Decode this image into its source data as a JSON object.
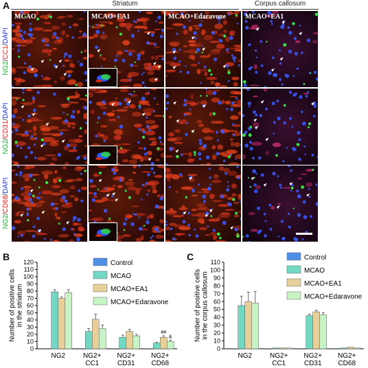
{
  "panel_a": {
    "letter": "A",
    "groups": [
      {
        "title": "Striatum"
      },
      {
        "title": "Corpus callosum"
      }
    ],
    "columns": [
      "MCAO",
      "MCAO+EA1",
      "MCAO+Edaravone",
      "MCAO+EA1"
    ],
    "rows": [
      {
        "parts": [
          {
            "text": "NG2",
            "color": "#22aa33"
          },
          {
            "text": "/",
            "color": "#222222"
          },
          {
            "text": "CC1",
            "color": "#dd2222"
          },
          {
            "text": "/",
            "color": "#222222"
          },
          {
            "text": "DAPI",
            "color": "#2233cc"
          }
        ]
      },
      {
        "parts": [
          {
            "text": "NG2",
            "color": "#22aa33"
          },
          {
            "text": "/",
            "color": "#222222"
          },
          {
            "text": "CD31",
            "color": "#dd2222"
          },
          {
            "text": "/",
            "color": "#222222"
          },
          {
            "text": "DAPI",
            "color": "#2233cc"
          }
        ]
      },
      {
        "parts": [
          {
            "text": "NG2",
            "color": "#22aa33"
          },
          {
            "text": "/",
            "color": "#222222"
          },
          {
            "text": "CD68",
            "color": "#dd2222"
          },
          {
            "text": "/",
            "color": "#222222"
          },
          {
            "text": "DAPI",
            "color": "#2233cc"
          }
        ]
      }
    ]
  },
  "chart_data": [
    {
      "panel": "B",
      "type": "bar",
      "ylabel": "Number of positive cells in the striatum",
      "ylim": [
        0,
        120
      ],
      "yticks": [
        0,
        10,
        20,
        30,
        40,
        50,
        60,
        70,
        80,
        90,
        100,
        110,
        120
      ],
      "categories": [
        "NG2",
        "NG2+\nCC1",
        "NG2+\nCD31",
        "NG2+\nCD68"
      ],
      "series": [
        {
          "name": "Control",
          "color": "#4f8fe6",
          "values": [
            0,
            0,
            0,
            0
          ],
          "errors": [
            0,
            0,
            0,
            0
          ]
        },
        {
          "name": "MCAO",
          "color": "#72d7c3",
          "values": [
            79,
            24,
            16,
            8
          ],
          "errors": [
            3,
            4,
            3,
            1
          ]
        },
        {
          "name": "MCAO+EA1",
          "color": "#e6cf98",
          "values": [
            70,
            41,
            24,
            16
          ],
          "errors": [
            2,
            7,
            3,
            2
          ]
        },
        {
          "name": "MCAO+Edaravone",
          "color": "#c7f3c5",
          "values": [
            78,
            28,
            18,
            10
          ],
          "errors": [
            4,
            5,
            2,
            2
          ]
        }
      ],
      "legend": "top-right",
      "annotations": [
        {
          "text": "##",
          "category": 3,
          "series": 2
        },
        {
          "text": "&",
          "category": 3,
          "series": 3
        }
      ]
    },
    {
      "panel": "C",
      "type": "bar",
      "ylabel": "Number of positive cells in the corpus callosum",
      "ylim": [
        0,
        110
      ],
      "yticks": [
        0,
        10,
        20,
        30,
        40,
        50,
        60,
        70,
        80,
        90,
        100,
        110
      ],
      "categories": [
        "NG2",
        "NG2+\nCC1",
        "NG2+\nCD31",
        "NG2+\nCD68"
      ],
      "series": [
        {
          "name": "Control",
          "color": "#4f8fe6",
          "values": [
            0,
            0,
            0,
            0
          ],
          "errors": [
            0,
            0,
            0,
            0
          ]
        },
        {
          "name": "MCAO",
          "color": "#72d7c3",
          "values": [
            55,
            1,
            42,
            1
          ],
          "errors": [
            12,
            0,
            2,
            0
          ]
        },
        {
          "name": "MCAO+EA1",
          "color": "#e6cf98",
          "values": [
            60,
            1,
            47,
            2
          ],
          "errors": [
            12,
            0,
            2,
            0
          ]
        },
        {
          "name": "MCAO+Edaravone",
          "color": "#c7f3c5",
          "values": [
            58,
            1,
            43,
            1
          ],
          "errors": [
            15,
            0,
            3,
            0
          ]
        }
      ],
      "legend": "top-right",
      "annotations": []
    }
  ]
}
